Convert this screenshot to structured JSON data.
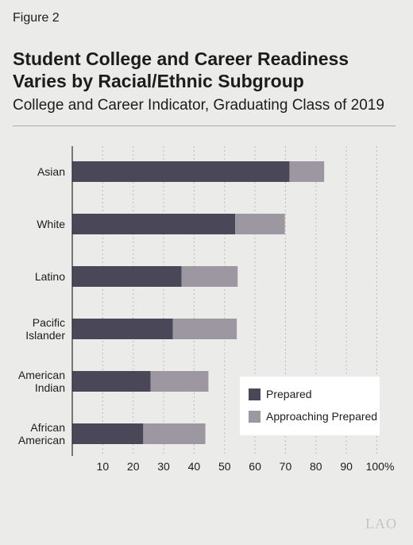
{
  "figure_label": "Figure 2",
  "title_line1": "Student College and Career Readiness",
  "title_line2": "Varies by Racial/Ethnic Subgroup",
  "subtitle": "College and Career Indicator, Graduating Class of 2019",
  "logo_text": "LAO",
  "chart_data": {
    "type": "bar",
    "orientation": "horizontal",
    "stacked": true,
    "categories": [
      [
        "Asian"
      ],
      [
        "White"
      ],
      [
        "Latino"
      ],
      [
        "Pacific",
        "Islander"
      ],
      [
        "American",
        "Indian"
      ],
      [
        "African",
        "American"
      ]
    ],
    "series": [
      {
        "name": "Prepared",
        "color": "#4a4758",
        "values": [
          71.3,
          53.5,
          35.9,
          33.0,
          25.7,
          23.3
        ]
      },
      {
        "name": "Approaching Prepared",
        "color": "#9c97a1",
        "values": [
          11.4,
          16.3,
          18.4,
          21.0,
          19.0,
          20.4
        ]
      }
    ],
    "x_ticks": [
      "10",
      "20",
      "30",
      "40",
      "50",
      "60",
      "70",
      "80",
      "90",
      "100%"
    ],
    "xlim": [
      0,
      100
    ],
    "grid": true,
    "legend_position": "bottom-right"
  }
}
